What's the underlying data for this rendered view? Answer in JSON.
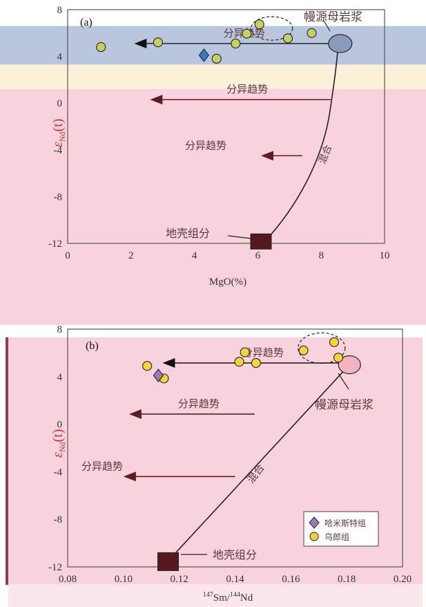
{
  "chart_data": [
    {
      "type": "scatter",
      "panel_label": "(a)",
      "xlabel": "MgO(%)",
      "ylabel_main": "ε",
      "ylabel_sub": "Nd",
      "ylabel_tail": "(t)",
      "xlim": [
        0,
        10
      ],
      "ylim": [
        -12,
        8
      ],
      "xticks": [
        "0",
        "2",
        "4",
        "6",
        "8",
        "10"
      ],
      "yticks": [
        "8",
        "4",
        "0",
        "-4",
        "-8",
        "-12"
      ],
      "bands": [
        {
          "from": 3.3,
          "to": 6.6,
          "color": "#b9c6de"
        },
        {
          "from": 1.2,
          "to": 3.3,
          "color": "#fbf1d8"
        },
        {
          "from": -12,
          "to": 1.2,
          "color": "#f8d2dd"
        }
      ],
      "series": [
        {
          "marker": "circle",
          "color": "#c9cf63",
          "points": [
            [
              1.05,
              4.8
            ],
            [
              2.85,
              5.2
            ],
            [
              4.7,
              3.8
            ],
            [
              5.3,
              5.1
            ],
            [
              5.65,
              5.95
            ],
            [
              6.05,
              6.75
            ],
            [
              6.95,
              5.55
            ],
            [
              7.7,
              6.0
            ]
          ]
        },
        {
          "marker": "diamond",
          "color": "#3a78c2",
          "points": [
            [
              4.3,
              4.1
            ]
          ]
        }
      ],
      "highlighted_point": [
        6.05,
        6.75
      ],
      "source_label": "幔源母岩浆",
      "source_point": [
        8.6,
        5.1
      ],
      "crust_label": "地壳组分",
      "crust_point": [
        6.1,
        -11.9
      ],
      "mixing_label": "混合",
      "trends": [
        {
          "label": "分异趋势",
          "y": 5.1,
          "from": 8.6,
          "to": 2.1
        },
        {
          "label": "分异趋势",
          "y": 0.3,
          "from": 8.3,
          "to": 2.6
        },
        {
          "label": "分异趋势",
          "y": -4.5,
          "from": 7.4,
          "to": 6.1
        }
      ]
    },
    {
      "type": "scatter",
      "panel_label": "(b)",
      "xlabel_sup1": "147",
      "xlabel_mid": "Sm/",
      "xlabel_sup2": "144",
      "xlabel_tail": "Nd",
      "ylabel_main": "ε",
      "ylabel_sub": "Nd",
      "ylabel_tail": "(t)",
      "xlim": [
        0.08,
        0.2
      ],
      "ylim": [
        -12,
        8
      ],
      "xticks": [
        "0.08",
        "0.10",
        "0.12",
        "0.14",
        "0.16",
        "0.18",
        "0.20"
      ],
      "yticks": [
        "8",
        "4",
        "0",
        "-4",
        "-8",
        "-12"
      ],
      "band_color": "#f8d2dd",
      "series": [
        {
          "name": "乌郎组",
          "marker": "circle",
          "color": "#f7d23d",
          "points": [
            [
              0.1085,
              4.9
            ],
            [
              0.1145,
              3.85
            ],
            [
              0.1415,
              5.25
            ],
            [
              0.1435,
              6.05
            ],
            [
              0.1475,
              5.15
            ],
            [
              0.1645,
              6.2
            ],
            [
              0.1755,
              6.9
            ],
            [
              0.177,
              5.6
            ]
          ]
        },
        {
          "name": "哈米斯特组",
          "marker": "diamond",
          "color": "#a07ab8",
          "points": [
            [
              0.1125,
              4.1
            ]
          ]
        }
      ],
      "source_label": "幔源母岩浆",
      "source_point": [
        0.181,
        5.0
      ],
      "crust_label": "地壳组分",
      "crust_point": [
        0.116,
        -11.5
      ],
      "mixing_label": "混合",
      "trends": [
        {
          "label": "分异趋势",
          "y": 5.15,
          "from": 0.181,
          "to": 0.114
        },
        {
          "label": "分异趋势",
          "y": 0.85,
          "from": 0.147,
          "to": 0.102
        },
        {
          "label": "分异趋势",
          "y": -4.4,
          "from": 0.14,
          "to": 0.1
        }
      ]
    }
  ]
}
